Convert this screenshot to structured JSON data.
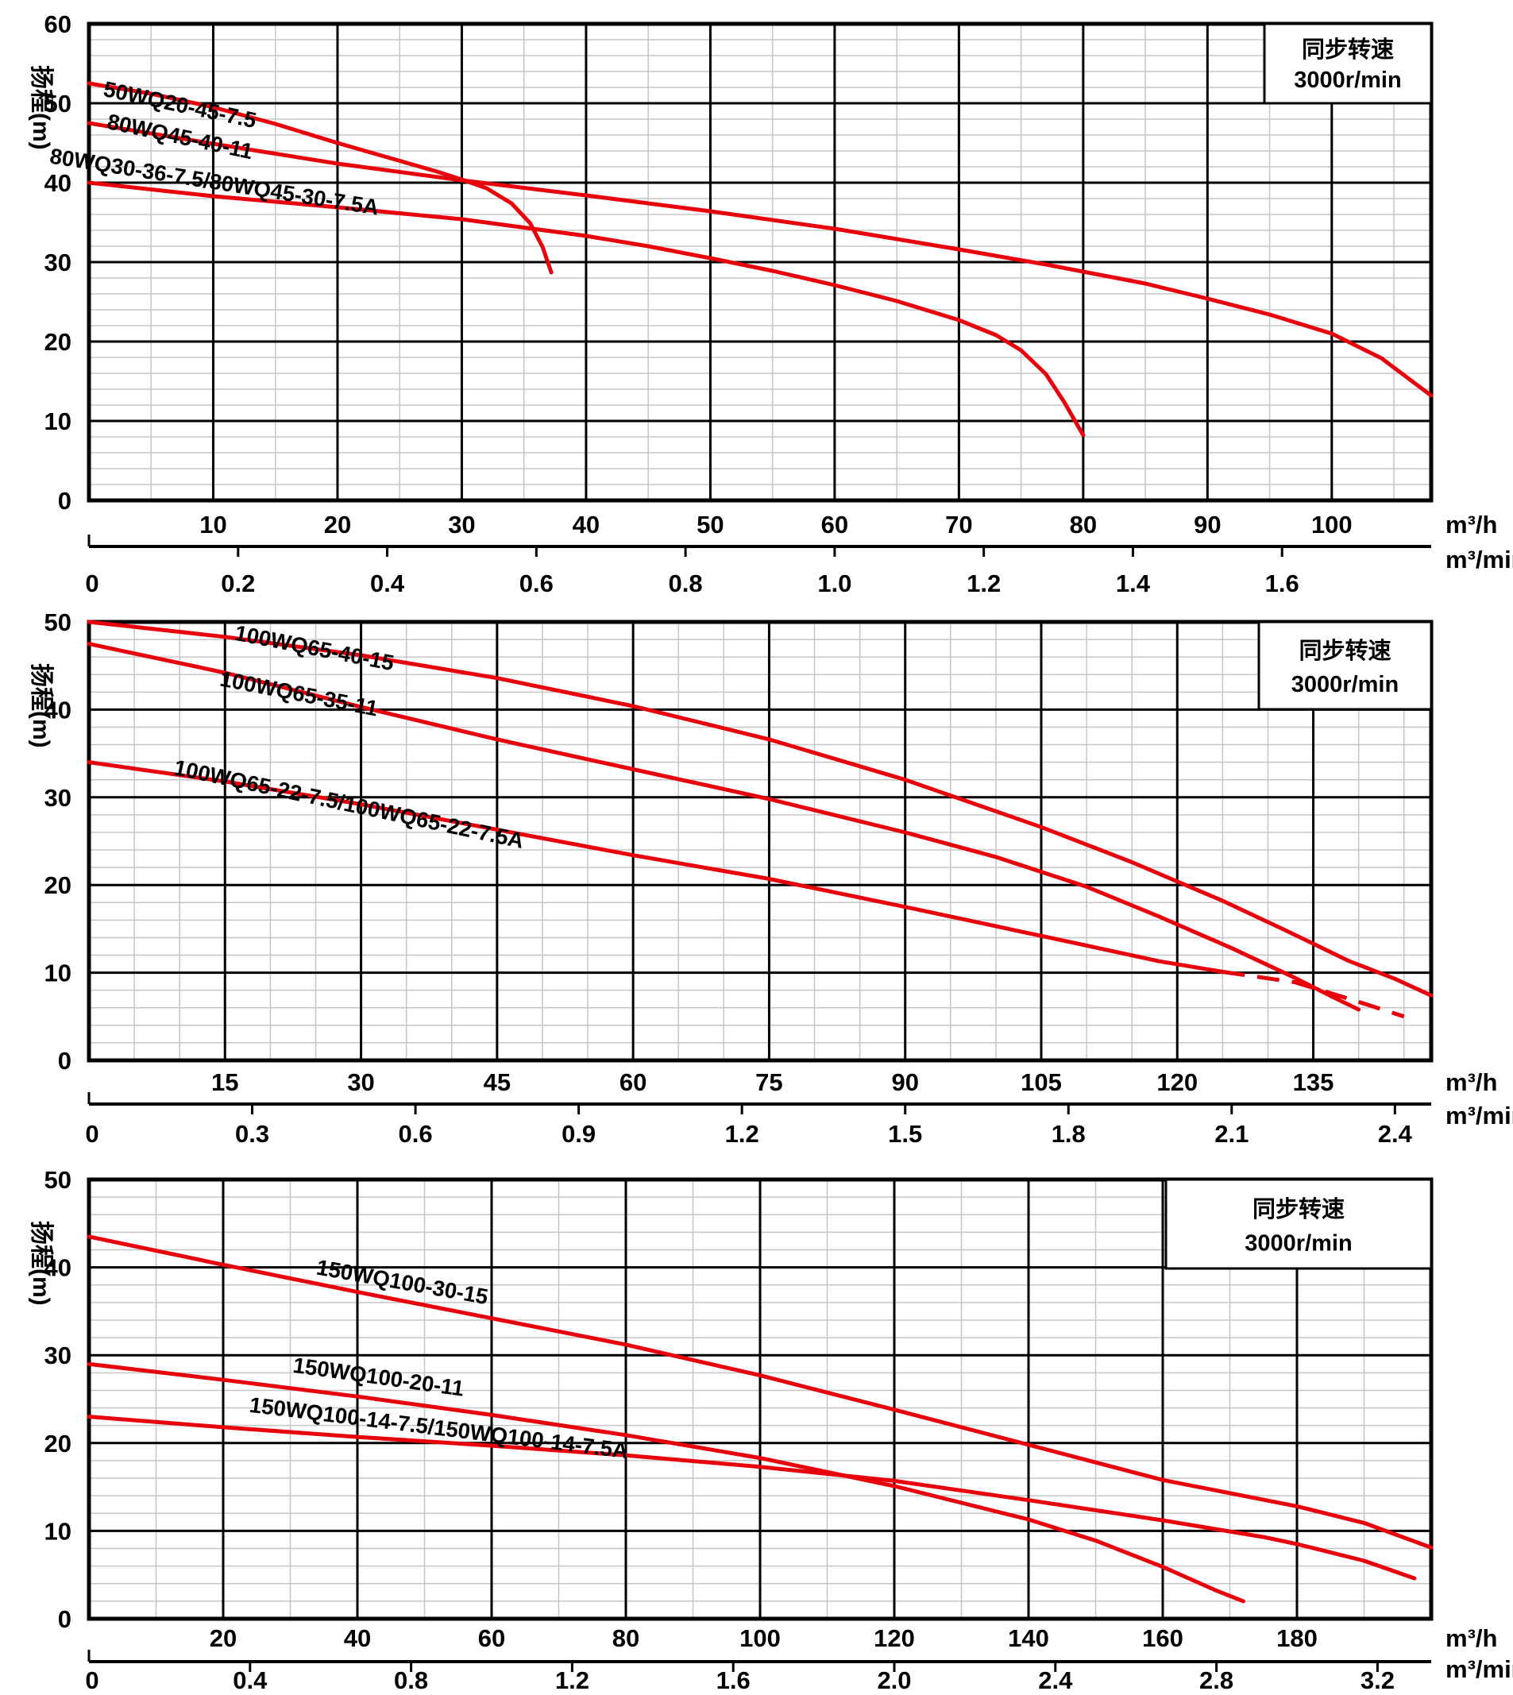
{
  "y_axis_title": "扬程(m)",
  "units": {
    "hourly": "m³/h",
    "per_minute": "m³/min"
  },
  "speed_annotation": {
    "line1": "同步转速",
    "line2": "3000r/min"
  },
  "colors": {
    "curve": "#e8000b",
    "speed_text": "#1777bd",
    "grid_minor": "#c5c5c5",
    "grid_major": "#000000",
    "background": "#ffffff"
  },
  "chart_data": [
    {
      "type": "line",
      "title": "",
      "ylabel": "扬程(m)",
      "xlabel_primary": "m³/h",
      "xlabel_secondary": "m³/min",
      "xlim_m3h": [
        0,
        108
      ],
      "ylim": [
        0,
        60
      ],
      "x_major_step": 10,
      "x_minor_step": 5,
      "y_major_step": 10,
      "y_minor_step": 2,
      "x_ticks_m3h": [
        "10",
        "20",
        "30",
        "40",
        "50",
        "60",
        "70",
        "80",
        "90",
        "100"
      ],
      "x_ticks_m3min": [
        "0",
        "0.2",
        "0.4",
        "0.6",
        "0.8",
        "1.0",
        "1.2",
        "1.4",
        "1.6"
      ],
      "x_ticks_m3min_values": [
        0,
        0.2,
        0.4,
        0.6,
        0.8,
        1.0,
        1.2,
        1.4,
        1.6
      ],
      "y_ticks": [
        "0",
        "10",
        "20",
        "30",
        "40",
        "50",
        "60"
      ],
      "annotation": "同步转速 3000r/min",
      "grid": true,
      "series": [
        {
          "name": "50WQ20-45-7.5",
          "points": [
            [
              0,
              52.5
            ],
            [
              5,
              51.2
            ],
            [
              10,
              49.5
            ],
            [
              15,
              47.4
            ],
            [
              20,
              45
            ],
            [
              24,
              43.2
            ],
            [
              28,
              41.4
            ],
            [
              30,
              40.4
            ],
            [
              32,
              39.3
            ],
            [
              34,
              37.4
            ],
            [
              35.5,
              34.9
            ],
            [
              36.5,
              31.9
            ],
            [
              37.2,
              28.7
            ]
          ],
          "label_pos": {
            "x": 7.2,
            "y": 48.9,
            "angle": 12
          }
        },
        {
          "name": "80WQ45-40-11",
          "points": [
            [
              0,
              47.5
            ],
            [
              10,
              44.9
            ],
            [
              20,
              42.4
            ],
            [
              30,
              40.3
            ],
            [
              40,
              38.4
            ],
            [
              50,
              36.4
            ],
            [
              60,
              34.2
            ],
            [
              70,
              31.6
            ],
            [
              77,
              29.7
            ],
            [
              85,
              27.3
            ],
            [
              90,
              25.4
            ],
            [
              95,
              23.4
            ],
            [
              100,
              21
            ],
            [
              104,
              17.9
            ],
            [
              108,
              13.2
            ]
          ],
          "label_pos": {
            "x": 7.2,
            "y": 44.9,
            "angle": 12
          }
        },
        {
          "name": "80WQ30-36-7.5/80WQ45-30-7.5A",
          "points": [
            [
              0,
              40
            ],
            [
              10,
              38.3
            ],
            [
              20,
              36.9
            ],
            [
              30,
              35.4
            ],
            [
              40,
              33.3
            ],
            [
              45,
              32
            ],
            [
              50,
              30.5
            ],
            [
              55,
              28.9
            ],
            [
              60,
              27.1
            ],
            [
              65,
              25.1
            ],
            [
              70,
              22.7
            ],
            [
              73,
              20.8
            ],
            [
              75,
              18.9
            ],
            [
              77,
              15.9
            ],
            [
              78.5,
              12.3
            ],
            [
              80,
              8.2
            ]
          ],
          "label_pos": {
            "x": 10,
            "y": 39.2,
            "angle": 9
          }
        }
      ]
    },
    {
      "type": "line",
      "title": "",
      "ylabel": "扬程(m)",
      "xlabel_primary": "m³/h",
      "xlabel_secondary": "m³/min",
      "xlim_m3h": [
        0,
        148
      ],
      "ylim": [
        0,
        50
      ],
      "x_major_step": 15,
      "x_minor_step": 5,
      "y_major_step": 10,
      "y_minor_step": 2,
      "x_ticks_m3h": [
        "15",
        "30",
        "45",
        "60",
        "75",
        "90",
        "105",
        "120",
        "135"
      ],
      "x_ticks_m3min": [
        "0",
        "0.3",
        "0.6",
        "0.9",
        "1.2",
        "1.5",
        "1.8",
        "2.1",
        "2.4"
      ],
      "x_ticks_m3min_values": [
        0,
        0.3,
        0.6,
        0.9,
        1.2,
        1.5,
        1.8,
        2.1,
        2.4
      ],
      "y_ticks": [
        "0",
        "10",
        "20",
        "30",
        "40",
        "50"
      ],
      "annotation": "同步转速 3000r/min",
      "grid": true,
      "series": [
        {
          "name": "100WQ65-40-15",
          "points": [
            [
              0,
              50
            ],
            [
              15,
              48.3
            ],
            [
              30,
              46.2
            ],
            [
              45,
              43.6
            ],
            [
              60,
              40.4
            ],
            [
              75,
              36.6
            ],
            [
              90,
              32
            ],
            [
              105,
              26.6
            ],
            [
              115,
              22.6
            ],
            [
              125,
              18.2
            ],
            [
              132,
              14.8
            ],
            [
              139,
              11.3
            ],
            [
              144,
              9.3
            ],
            [
              148,
              7.4
            ]
          ],
          "label_pos": {
            "x": 24.7,
            "y": 46.2,
            "angle": 11
          }
        },
        {
          "name": "100WQ65-35-11",
          "points": [
            [
              0,
              47.5
            ],
            [
              15,
              44.2
            ],
            [
              30,
              40.3
            ],
            [
              45,
              36.6
            ],
            [
              60,
              33.2
            ],
            [
              75,
              29.8
            ],
            [
              90,
              26
            ],
            [
              100,
              23.2
            ],
            [
              110,
              19.8
            ],
            [
              118,
              16.4
            ],
            [
              126,
              12.8
            ],
            [
              133,
              9.4
            ],
            [
              137,
              7.3
            ],
            [
              140,
              5.8
            ]
          ],
          "label_pos": {
            "x": 23,
            "y": 41,
            "angle": 11
          }
        },
        {
          "name": "100WQ65-22-7.5/100WQ65-22-7.5A",
          "points": [
            [
              0,
              34
            ],
            [
              15,
              31.8
            ],
            [
              30,
              29.2
            ],
            [
              45,
              26.3
            ],
            [
              60,
              23.4
            ],
            [
              75,
              20.7
            ],
            [
              90,
              17.5
            ],
            [
              100,
              15.3
            ],
            [
              110,
              13.1
            ],
            [
              118,
              11.3
            ],
            [
              125,
              10.1
            ]
          ],
          "dashed_tail": [
            [
              125,
              10.1
            ],
            [
              133,
              8.9
            ],
            [
              139,
              7
            ],
            [
              145,
              5
            ]
          ],
          "label_pos": {
            "x": 28.5,
            "y": 28.4,
            "angle": 12
          }
        }
      ]
    },
    {
      "type": "line",
      "title": "",
      "ylabel": "扬程(m)",
      "xlabel_primary": "m³/h",
      "xlabel_secondary": "m³/min",
      "xlim_m3h": [
        0,
        200
      ],
      "ylim": [
        0,
        50
      ],
      "x_major_step": 20,
      "x_minor_step": 10,
      "y_major_step": 10,
      "y_minor_step": 2,
      "x_ticks_m3h": [
        "20",
        "40",
        "60",
        "80",
        "100",
        "120",
        "140",
        "160",
        "180"
      ],
      "x_ticks_m3min": [
        "0",
        "0.4",
        "0.8",
        "1.2",
        "1.6",
        "2.0",
        "2.4",
        "2.8",
        "3.2"
      ],
      "x_ticks_m3min_values": [
        0,
        0.4,
        0.8,
        1.2,
        1.6,
        2.0,
        2.4,
        2.8,
        3.2
      ],
      "y_ticks": [
        "0",
        "10",
        "20",
        "30",
        "40",
        "50"
      ],
      "annotation": "同步转速 3000r/min",
      "grid": true,
      "series": [
        {
          "name": "150WQ100-30-15",
          "points": [
            [
              0,
              43.5
            ],
            [
              20,
              40.3
            ],
            [
              40,
              37.2
            ],
            [
              60,
              34.2
            ],
            [
              80,
              31.2
            ],
            [
              100,
              27.7
            ],
            [
              120,
              23.8
            ],
            [
              140,
              19.8
            ],
            [
              160,
              15.8
            ],
            [
              180,
              12.8
            ],
            [
              190,
              10.9
            ],
            [
              200,
              8.1
            ]
          ],
          "label_pos": {
            "x": 46.5,
            "y": 37.5,
            "angle": 10
          }
        },
        {
          "name": "150WQ100-20-11",
          "points": [
            [
              0,
              29
            ],
            [
              20,
              27.2
            ],
            [
              40,
              25.3
            ],
            [
              60,
              23.2
            ],
            [
              80,
              20.9
            ],
            [
              100,
              18.3
            ],
            [
              120,
              15.1
            ],
            [
              140,
              11.3
            ],
            [
              150,
              8.9
            ],
            [
              160,
              5.9
            ],
            [
              168,
              3.2
            ],
            [
              172,
              2
            ]
          ],
          "label_pos": {
            "x": 43,
            "y": 26.7,
            "angle": 8
          }
        },
        {
          "name": "150WQ100-14-7.5/150WQ100-14-7.5A",
          "points": [
            [
              0,
              23
            ],
            [
              20,
              21.8
            ],
            [
              40,
              20.7
            ],
            [
              60,
              19.7
            ],
            [
              80,
              18.6
            ],
            [
              100,
              17.3
            ],
            [
              120,
              15.7
            ],
            [
              140,
              13.5
            ],
            [
              160,
              11.2
            ],
            [
              175,
              9.3
            ],
            [
              180,
              8.5
            ],
            [
              190,
              6.6
            ],
            [
              197.5,
              4.6
            ]
          ],
          "label_pos": {
            "x": 52,
            "y": 20.9,
            "angle": 7
          }
        }
      ]
    }
  ]
}
